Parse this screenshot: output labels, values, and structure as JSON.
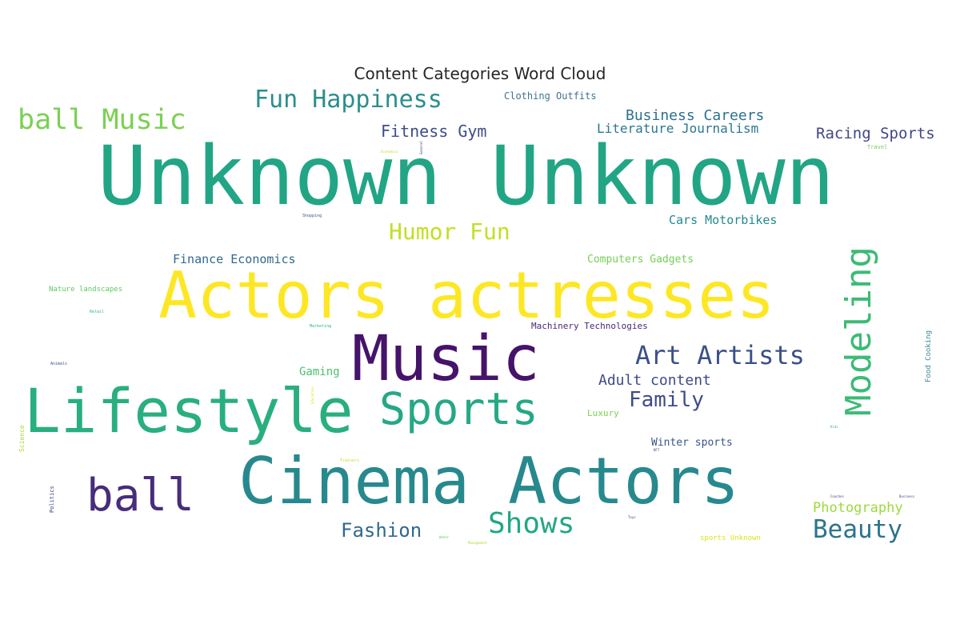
{
  "title": "Content Categories Word Cloud",
  "words": [
    {
      "id": "unknown-unknown",
      "text": "Unknown Unknown",
      "color": "#21a585"
    },
    {
      "id": "actors-actresses",
      "text": "Actors actresses",
      "color": "#fde725"
    },
    {
      "id": "cinema-actors",
      "text": "Cinema Actors",
      "color": "#27898d"
    },
    {
      "id": "lifestyle",
      "text": "Lifestyle",
      "color": "#29af7f"
    },
    {
      "id": "music",
      "text": "Music",
      "color": "#46136b"
    },
    {
      "id": "sports",
      "text": "Sports",
      "color": "#25a886"
    },
    {
      "id": "ball",
      "text": "ball",
      "color": "#472d7b"
    },
    {
      "id": "modeling",
      "text": "Modeling",
      "color": "#3bbb75"
    },
    {
      "id": "ball-music",
      "text": "ball Music",
      "color": "#7ad151"
    },
    {
      "id": "fun-happiness",
      "text": "Fun Happiness",
      "color": "#2b8e8c"
    },
    {
      "id": "art-artists",
      "text": "Art Artists",
      "color": "#3b4f8a"
    },
    {
      "id": "shows",
      "text": "Shows",
      "color": "#22a785"
    },
    {
      "id": "beauty",
      "text": "Beauty",
      "color": "#2b748e"
    },
    {
      "id": "humor-fun",
      "text": "Humor Fun",
      "color": "#c2df23"
    },
    {
      "id": "family",
      "text": "Family",
      "color": "#3e4c8a"
    },
    {
      "id": "fashion",
      "text": "Fashion",
      "color": "#31688e"
    },
    {
      "id": "fitness-gym",
      "text": "Fitness Gym",
      "color": "#3d4d8a"
    },
    {
      "id": "racing-sports",
      "text": "Racing Sports",
      "color": "#404688"
    },
    {
      "id": "business-careers",
      "text": "Business Careers",
      "color": "#2d708e"
    },
    {
      "id": "literature-journalism",
      "text": "Literature Journalism",
      "color": "#2a788e"
    },
    {
      "id": "adult-content",
      "text": "Adult content",
      "color": "#3e4989"
    },
    {
      "id": "photography",
      "text": "Photography",
      "color": "#9dd93b"
    },
    {
      "id": "cars-motorbikes",
      "text": "Cars Motorbikes",
      "color": "#23898e"
    },
    {
      "id": "finance-economics",
      "text": "Finance Economics",
      "color": "#30698e"
    },
    {
      "id": "computers-gadgets",
      "text": "Computers Gadgets",
      "color": "#75d054"
    },
    {
      "id": "clothing-outfits",
      "text": "Clothing Outfits",
      "color": "#3e748e"
    },
    {
      "id": "gaming",
      "text": "Gaming",
      "color": "#4ac16d"
    },
    {
      "id": "winter-sports",
      "text": "Winter sports",
      "color": "#3a548c"
    },
    {
      "id": "machinery-technologies",
      "text": "Machinery Technologies",
      "color": "#482878"
    },
    {
      "id": "luxury",
      "text": "Luxury",
      "color": "#7ad151"
    },
    {
      "id": "nature-landscapes",
      "text": "Nature landscapes",
      "color": "#5ec962"
    },
    {
      "id": "sports-unknown",
      "text": "sports Unknown",
      "color": "#dde318"
    },
    {
      "id": "food-cooking",
      "text": "Food Cooking",
      "color": "#3e8a9a"
    },
    {
      "id": "science",
      "text": "Science",
      "color": "#a2da37"
    },
    {
      "id": "politics",
      "text": "Politics",
      "color": "#414487"
    },
    {
      "id": "travel",
      "text": "Travel",
      "color": "#6ece58"
    },
    {
      "id": "shopping",
      "text": "Shopping",
      "color": "#3b528b"
    },
    {
      "id": "retail",
      "text": "Retail",
      "color": "#35b779"
    },
    {
      "id": "marketing",
      "text": "Marketing",
      "color": "#2fb47c"
    },
    {
      "id": "animals",
      "text": "Animals",
      "color": "#3a528b"
    },
    {
      "id": "economics",
      "text": "Economics",
      "color": "#bddf26"
    },
    {
      "id": "general",
      "text": "General",
      "color": "#3e4a89"
    },
    {
      "id": "trainers",
      "text": "Trainers",
      "color": "#c8e020"
    },
    {
      "id": "nft",
      "text": "NFT",
      "color": "#414487"
    },
    {
      "id": "coaches",
      "text": "Coaches",
      "color": "#3e4a89"
    },
    {
      "id": "toys",
      "text": "Toys",
      "color": "#443983"
    },
    {
      "id": "kids",
      "text": "Kids",
      "color": "#35b779"
    },
    {
      "id": "water",
      "text": "Water",
      "color": "#5ec962"
    },
    {
      "id": "management",
      "text": "Management",
      "color": "#a8db34"
    },
    {
      "id": "education",
      "text": "Education",
      "color": "#d8e219"
    },
    {
      "id": "business",
      "text": "Business",
      "color": "#3f4889"
    }
  ]
}
